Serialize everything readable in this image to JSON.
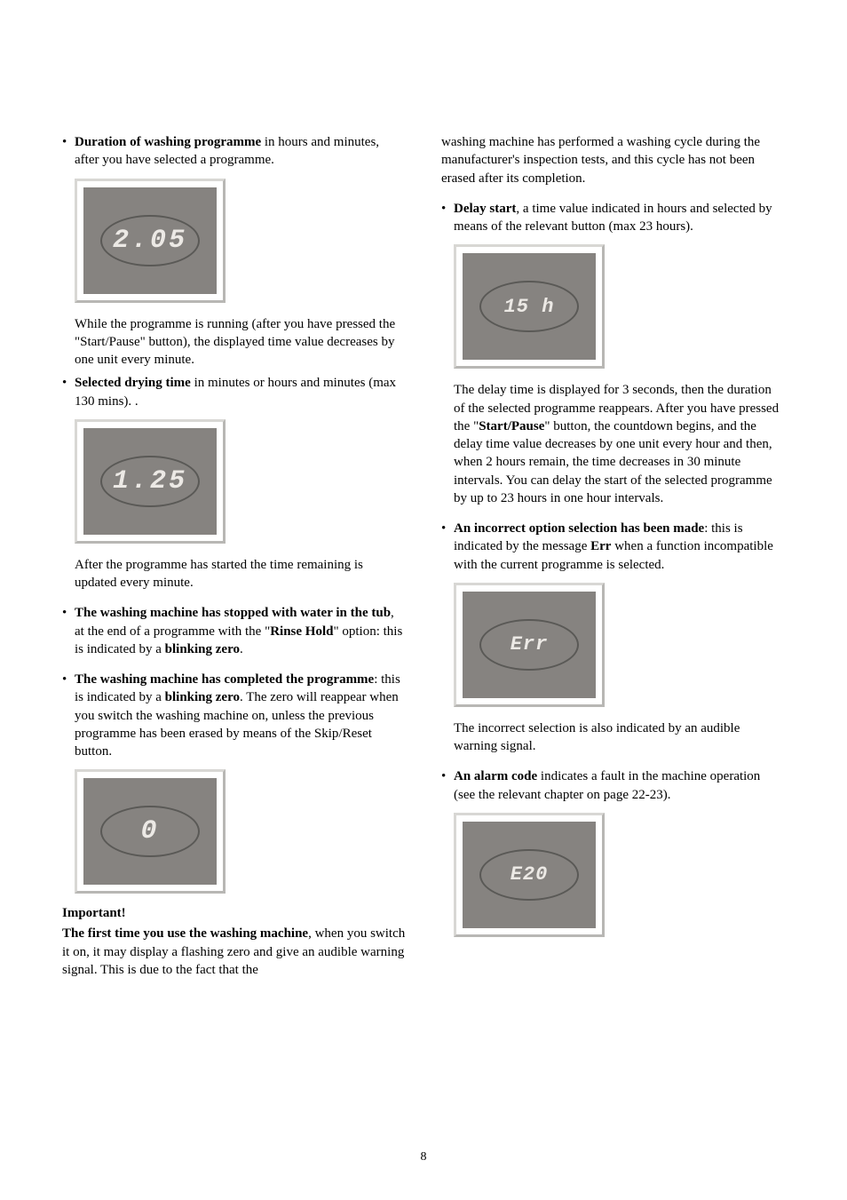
{
  "left": {
    "item1_text_html": "<b>Duration of washing programme</b> in hours and minutes, after you have selected a programme.",
    "display1": "2.05",
    "item1_after": "While the programme is running (after you have pressed the \"Start/Pause\" button), the displayed time value decreases by one unit every minute.",
    "item2_text_html": "<b>Selected drying time</b> in minutes or hours and minutes (max 130 mins). .",
    "display2": "1.25",
    "item2_after": "After the programme has started the time remaining is updated every minute.",
    "item3_text_html": "<b>The washing machine has stopped with water in the tub</b>, at the end of a programme with the \"<b>Rinse Hold</b>\" option: this is indicated by a <b>blinking zero</b>.",
    "item4_text_html": "<b>The washing machine has completed the programme</b>: this is indicated by a <b>blinking zero</b>. The zero will reappear when you switch the washing machine on, unless the previous programme has been erased by means of the Skip/Reset button.",
    "display3": "0",
    "important_label": "Important!",
    "important_text_html": "<b>The first time you use the washing machine</b>, when you switch it on, it may display a flashing zero and give an audible warning signal. This is due to the fact that the"
  },
  "right": {
    "top_para": "washing machine has performed a washing cycle during the manufacturer's inspection tests, and this cycle has not been erased after its completion.",
    "item1_text_html": "<b>Delay start</b>, a time value indicated in hours and selected by means of the relevant button (max 23 hours).",
    "display1": "15 h",
    "item1_after_html": "The delay time is displayed for 3 seconds, then the duration of the selected programme reappears. After you have pressed the \"<b>Start/Pause</b>\" button, the countdown begins, and the delay time value decreases by one unit every hour and then, when 2 hours remain, the time decreases in 30 minute intervals. You can delay the start of the selected programme by up to 23 hours in one hour intervals.",
    "item2_text_html": "<b>An incorrect option selection has been made</b>: this is indicated by the message <b>Err</b> when a function incompatible with the current programme is selected.",
    "display2": "Err",
    "item2_after": "The incorrect selection is also indicated by an audible warning signal.",
    "item3_text_html": "<b>An alarm code</b> indicates a fault in the machine operation (see the relevant chapter on page 22-23).",
    "display3": "E20"
  },
  "page_number": "8",
  "colors": {
    "page_bg": "#ffffff",
    "text": "#000000",
    "box_border_light": "#d8d7d4",
    "box_border_dark": "#b8b7b4",
    "display_bg": "#868380",
    "oval_border": "#5a5956",
    "digit_color": "#ece9e5"
  },
  "fonts": {
    "body_family": "Georgia, Times New Roman, serif",
    "body_size_pt": 11,
    "digit_family": "Courier New, monospace"
  }
}
